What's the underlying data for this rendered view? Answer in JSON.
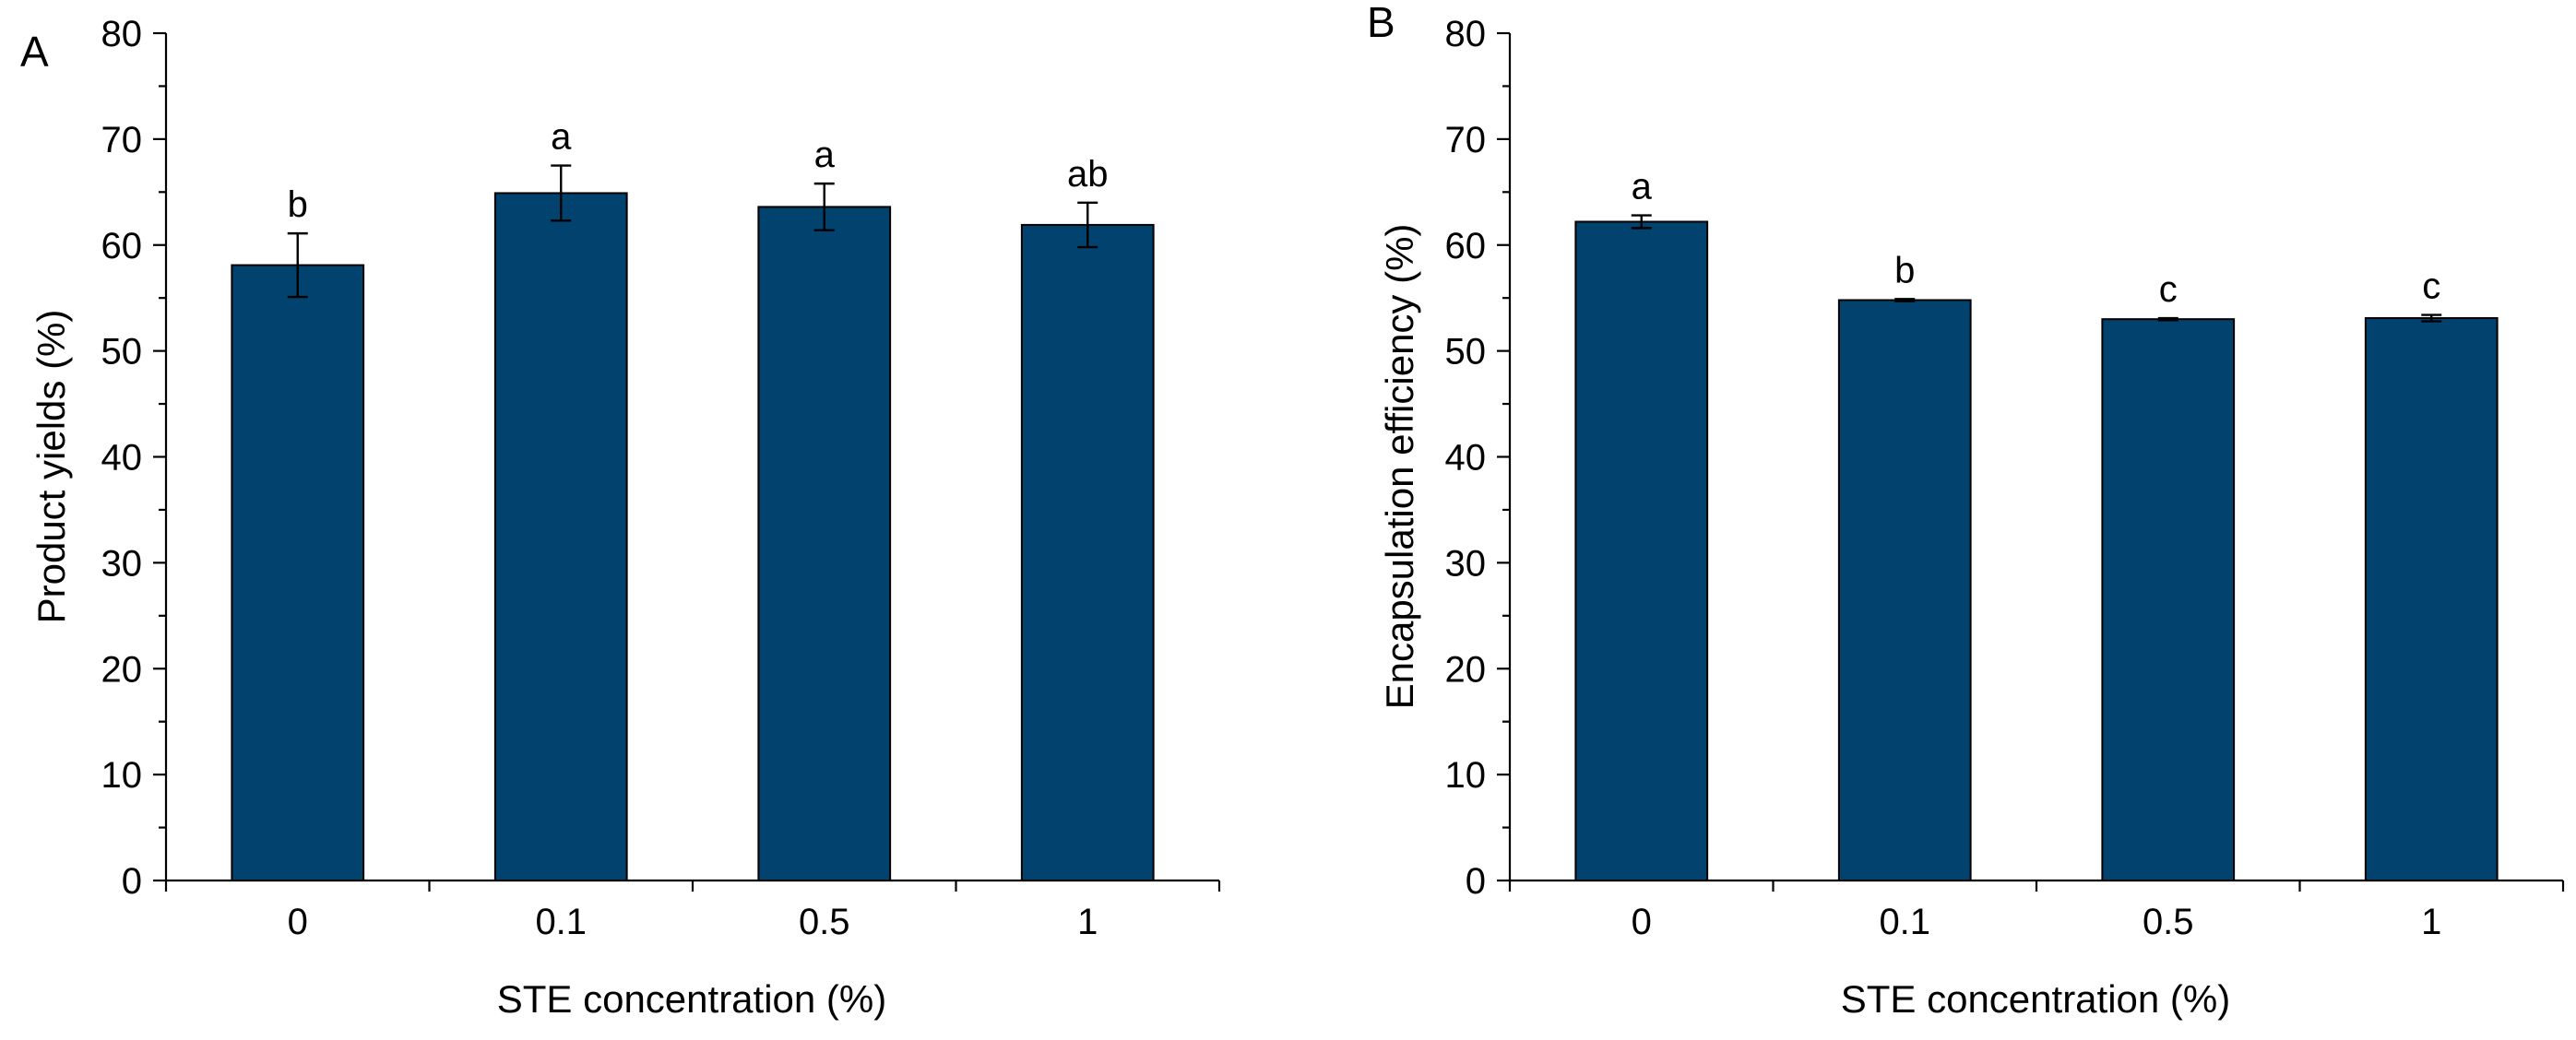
{
  "chart_data": [
    {
      "type": "bar",
      "panel_label": "A",
      "categories": [
        "0",
        "0.1",
        "0.5",
        "1"
      ],
      "values": [
        58.1,
        64.9,
        63.6,
        61.9
      ],
      "errors": [
        3.0,
        2.6,
        2.2,
        2.1
      ],
      "significance": [
        "b",
        "a",
        "a",
        "ab"
      ],
      "xlabel": "STE concentration (%)",
      "ylabel": "Product yields (%)",
      "ylim": [
        0,
        80
      ],
      "yticks": [
        "0",
        "10",
        "20",
        "30",
        "40",
        "50",
        "60",
        "70",
        "80"
      ],
      "bar_color": "#02426f"
    },
    {
      "type": "bar",
      "panel_label": "B",
      "categories": [
        "0",
        "0.1",
        "0.5",
        "1"
      ],
      "values": [
        62.2,
        54.8,
        53.0,
        53.1
      ],
      "errors": [
        0.6,
        0.1,
        0.1,
        0.3
      ],
      "significance": [
        "a",
        "b",
        "c",
        "c"
      ],
      "xlabel": "STE concentration (%)",
      "ylabel": "Encapsulation efficiency (%)",
      "ylim": [
        0,
        80
      ],
      "yticks": [
        "0",
        "10",
        "20",
        "30",
        "40",
        "50",
        "60",
        "70",
        "80"
      ],
      "bar_color": "#02426f"
    }
  ]
}
